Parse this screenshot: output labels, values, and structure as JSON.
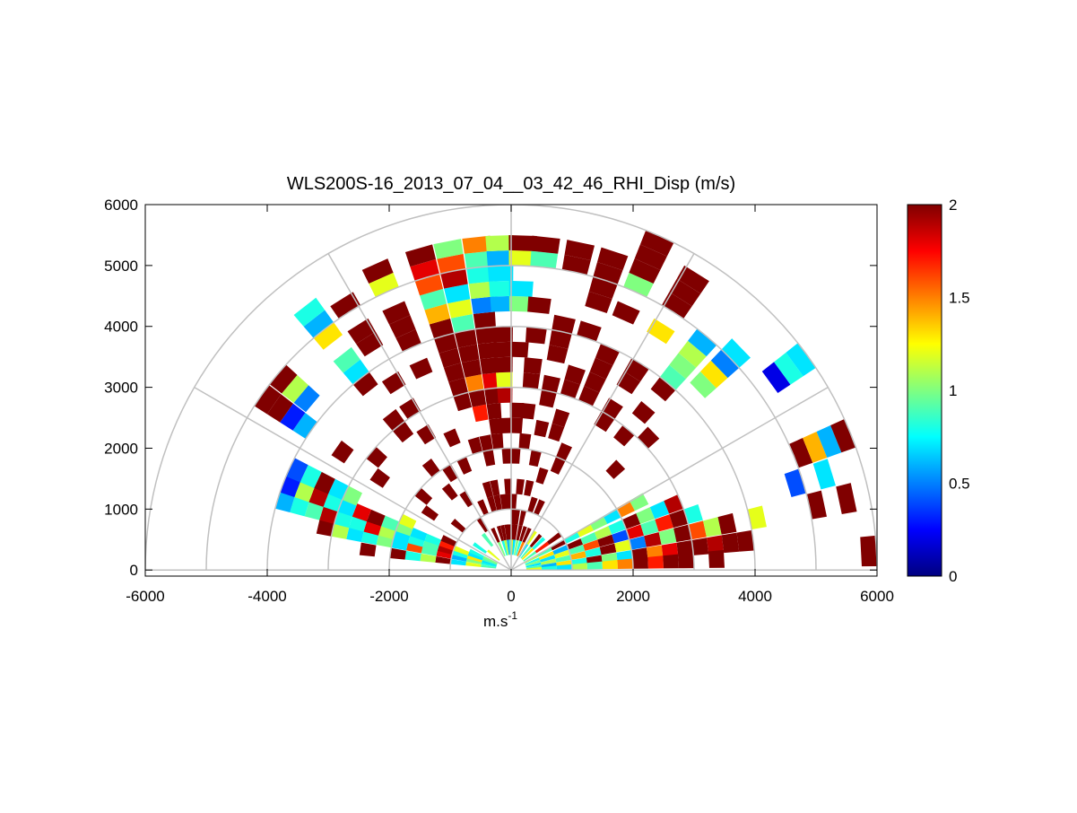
{
  "chart_data": {
    "type": "polar-rhi",
    "title": "WLS200S-16_2013_07_04__03_42_46_RHI_Disp (m/s)",
    "xlabel": {
      "text": "m.s",
      "superscript": "-1"
    },
    "xlim": [
      -6000,
      6000
    ],
    "xticks": [
      -6000,
      -4000,
      -2000,
      0,
      2000,
      4000,
      6000
    ],
    "ylim": [
      -100,
      6000
    ],
    "yticks": [
      0,
      1000,
      2000,
      3000,
      4000,
      5000,
      6000
    ],
    "rings": [
      1000,
      2000,
      3000,
      4000,
      5000,
      6000
    ],
    "spokes": [
      0,
      30,
      60,
      90,
      120,
      150,
      180
    ],
    "colormap": "jet",
    "clim": [
      0,
      2
    ],
    "cticks": [
      0,
      0.5,
      1,
      1.5,
      2
    ],
    "ranges": [
      0,
      250,
      500,
      750,
      1000,
      1250,
      1500,
      1750,
      2000,
      2250,
      2500,
      2750,
      3000,
      3250,
      3500,
      3750,
      4000,
      4250,
      4500,
      4750,
      5000,
      5250,
      5500,
      5750
    ],
    "beams": [
      {
        "elevation": 172,
        "values": [
          null,
          0.9,
          1.2,
          0.7,
          2,
          1.1,
          0.8,
          2,
          null,
          2,
          null,
          null,
          null,
          null,
          null,
          null,
          null,
          null,
          null,
          null,
          null,
          null,
          null,
          null
        ]
      },
      {
        "elevation": 167,
        "values": [
          null,
          0.8,
          1.0,
          0.6,
          1.8,
          0.9,
          1.6,
          0.7,
          1.0,
          0.8,
          0.7,
          1.1,
          2,
          null,
          null,
          null,
          null,
          null,
          null,
          null,
          null,
          null,
          null,
          null
        ]
      },
      {
        "elevation": 163,
        "values": [
          null,
          0.7,
          1.3,
          0.8,
          1.9,
          0.9,
          0.8,
          0.7,
          1.1,
          1.8,
          0.8,
          0.8,
          1.9,
          0.9,
          0.8,
          0.6,
          null,
          null,
          null,
          null,
          null,
          null,
          null,
          null
        ]
      },
      {
        "elevation": 159,
        "values": [
          null,
          0.9,
          0.7,
          1.2,
          1.7,
          0.8,
          0.7,
          1.0,
          0.9,
          2,
          1.8,
          0.7,
          0.8,
          1.9,
          1.1,
          0.3,
          null,
          null,
          null,
          null,
          null,
          null,
          null,
          null
        ]
      },
      {
        "elevation": 155,
        "values": [
          null,
          1.0,
          0.8,
          null,
          2,
          null,
          null,
          1.2,
          null,
          null,
          null,
          1.0,
          0.7,
          2,
          0.8,
          0.4,
          null,
          null,
          null,
          null,
          null,
          null,
          null,
          null
        ]
      },
      {
        "elevation": 145,
        "values": [
          null,
          null,
          0.8,
          null,
          null,
          null,
          2,
          null,
          null,
          null,
          2,
          null,
          null,
          2,
          null,
          null,
          0.6,
          0.3,
          2,
          2,
          null,
          null,
          null,
          null
        ]
      },
      {
        "elevation": 140,
        "values": [
          null,
          1.2,
          null,
          null,
          2,
          null,
          null,
          2,
          null,
          null,
          null,
          2,
          null,
          null,
          null,
          null,
          null,
          0.5,
          1.1,
          2,
          null,
          null,
          null,
          null
        ]
      },
      {
        "elevation": 128,
        "values": [
          null,
          null,
          0.9,
          null,
          null,
          null,
          2,
          null,
          2,
          null,
          null,
          2,
          2,
          null,
          null,
          2,
          0.7,
          0.9,
          null,
          1.3,
          0.6,
          0.8,
          null,
          null
        ]
      },
      {
        "elevation": 122,
        "values": [
          null,
          null,
          null,
          2,
          null,
          2,
          null,
          2,
          null,
          null,
          2,
          null,
          2,
          null,
          2,
          null,
          null,
          2,
          2,
          null,
          2,
          null,
          null,
          null
        ]
      },
      {
        "elevation": 114,
        "values": [
          null,
          1.0,
          2,
          null,
          2,
          null,
          null,
          2,
          null,
          2,
          null,
          null,
          null,
          null,
          2,
          null,
          2,
          2,
          2,
          null,
          1.2,
          2,
          null,
          null
        ]
      },
      {
        "elevation": 106,
        "values": [
          null,
          0.8,
          2,
          null,
          2,
          2,
          null,
          null,
          2,
          null,
          null,
          2,
          2,
          2,
          2,
          2,
          2,
          1.4,
          0.9,
          1.6,
          1.8,
          2,
          null,
          null
        ]
      },
      {
        "elevation": 101,
        "values": [
          null,
          1.1,
          2,
          null,
          2,
          2,
          null,
          2,
          2,
          null,
          1.7,
          2,
          1.5,
          2,
          2,
          2,
          0.9,
          1.2,
          0.7,
          1.9,
          1.6,
          1.0,
          null,
          null
        ]
      },
      {
        "elevation": 96,
        "values": [
          null,
          0.6,
          2,
          null,
          2,
          null,
          null,
          null,
          2,
          2,
          2,
          2,
          1.8,
          2,
          2,
          2,
          2,
          0.5,
          1.1,
          0.8,
          0.9,
          1.5,
          null,
          null
        ]
      },
      {
        "elevation": 92,
        "values": [
          null,
          0.9,
          2,
          null,
          2,
          2,
          null,
          2,
          null,
          2,
          null,
          1.9,
          1.2,
          2,
          2,
          2,
          null,
          0.6,
          0.8,
          0.7,
          0.6,
          1.1,
          null,
          null
        ]
      },
      {
        "elevation": 88,
        "values": [
          null,
          1.2,
          2,
          2,
          2,
          null,
          null,
          2,
          null,
          2,
          2,
          null,
          null,
          null,
          2,
          null,
          null,
          1.0,
          0.7,
          null,
          1.2,
          2,
          null,
          null
        ]
      },
      {
        "elevation": 84,
        "values": [
          null,
          0.7,
          2,
          2,
          null,
          2,
          null,
          null,
          2,
          null,
          2,
          null,
          2,
          2,
          null,
          2,
          null,
          2,
          null,
          null,
          0.9,
          2,
          null,
          null
        ]
      },
      {
        "elevation": 78,
        "values": [
          null,
          1.0,
          2,
          2,
          null,
          2,
          null,
          2,
          null,
          2,
          null,
          2,
          2,
          null,
          2,
          2,
          2,
          null,
          null,
          null,
          2,
          2,
          null,
          null
        ]
      },
      {
        "elevation": 72,
        "values": [
          null,
          0.8,
          2,
          null,
          2,
          null,
          2,
          null,
          null,
          2,
          2,
          null,
          2,
          2,
          null,
          null,
          2,
          null,
          2,
          2,
          2,
          2,
          null,
          null
        ]
      },
      {
        "elevation": 66,
        "values": [
          null,
          1.5,
          2,
          null,
          2,
          null,
          null,
          2,
          2,
          null,
          null,
          null,
          2,
          2,
          2,
          2,
          null,
          null,
          2,
          null,
          1.0,
          2,
          2,
          2
        ]
      },
      {
        "elevation": 58,
        "values": [
          null,
          0.7,
          1.2,
          null,
          null,
          null,
          null,
          null,
          null,
          null,
          null,
          2,
          2,
          null,
          2,
          2,
          null,
          null,
          1.3,
          null,
          2,
          2,
          2,
          null
        ]
      },
      {
        "elevation": 50,
        "values": [
          null,
          0.9,
          2,
          null,
          null,
          null,
          null,
          null,
          null,
          null,
          null,
          2,
          null,
          2,
          null,
          2,
          0.9,
          1.0,
          1.1,
          0.6,
          null,
          null,
          null,
          null
        ]
      },
      {
        "elevation": 44,
        "values": [
          null,
          1.3,
          0.8,
          null,
          null,
          null,
          null,
          null,
          null,
          2,
          null,
          null,
          2,
          null,
          null,
          null,
          null,
          1.0,
          1.3,
          0.5,
          0.7,
          null,
          null,
          null
        ]
      },
      {
        "elevation": 36,
        "values": [
          null,
          0.9,
          1.7,
          2,
          null,
          null,
          null,
          null,
          null,
          null,
          null,
          null,
          null,
          null,
          null,
          null,
          null,
          null,
          null,
          null,
          null,
          0.2,
          0.8,
          0.7
        ]
      },
      {
        "elevation": 28,
        "values": [
          null,
          1.1,
          0.9,
          2,
          0.8,
          1.2,
          1.0,
          0.7,
          1.5,
          1.0,
          null,
          null,
          null,
          null,
          null,
          null,
          null,
          null,
          null,
          null,
          null,
          null,
          null,
          null
        ]
      },
      {
        "elevation": 22,
        "values": [
          null,
          0.8,
          1.3,
          0.6,
          2,
          0.9,
          1.1,
          0.8,
          2,
          1.0,
          0.7,
          1.9,
          null,
          null,
          null,
          null,
          null,
          null,
          null,
          null,
          2,
          1.4,
          0.6,
          2
        ]
      },
      {
        "elevation": 17,
        "values": [
          null,
          1.0,
          0.7,
          1.2,
          0.9,
          1.6,
          2,
          0.4,
          1.8,
          0.9,
          1.7,
          2,
          0.8,
          null,
          null,
          null,
          null,
          null,
          null,
          0.4,
          null,
          0.7,
          null,
          null
        ]
      },
      {
        "elevation": 12,
        "values": [
          null,
          0.7,
          1.1,
          0.9,
          1.4,
          0.8,
          2,
          1.2,
          0.5,
          1.9,
          1.0,
          2,
          1.6,
          1.1,
          2,
          null,
          1.2,
          null,
          null,
          null,
          2,
          null,
          2,
          null
        ]
      },
      {
        "elevation": 7,
        "values": [
          null,
          0.9,
          0.6,
          1.3,
          0.8,
          2,
          1.0,
          0.7,
          2,
          1.5,
          1.8,
          2,
          2,
          1.9,
          2,
          2,
          null,
          null,
          null,
          null,
          null,
          null,
          null,
          null
        ]
      },
      {
        "elevation": 3,
        "values": [
          null,
          1.2,
          0.8,
          0.7,
          1.1,
          0.9,
          1.3,
          1.5,
          2,
          1.7,
          2,
          2,
          null,
          2,
          null,
          null,
          null,
          null,
          null,
          null,
          null,
          null,
          null,
          2
        ]
      }
    ]
  }
}
